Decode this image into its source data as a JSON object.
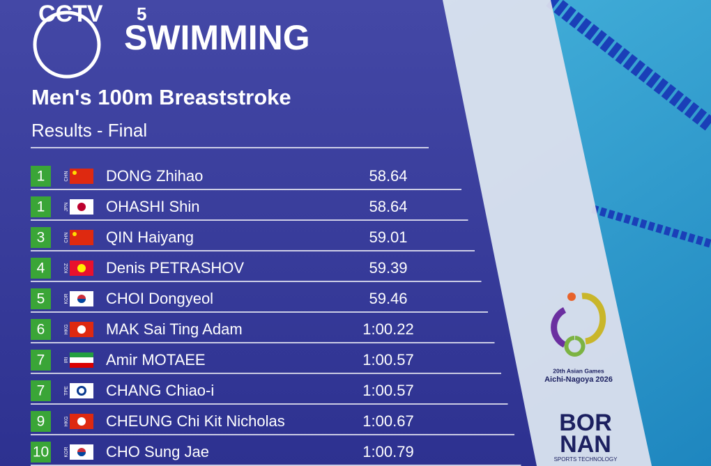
{
  "header": {
    "channel": "CCTV",
    "channel_number": "5",
    "sport": "SWIMMING",
    "event": "Men's 100m Breaststroke",
    "phase": "Results - Final"
  },
  "results": [
    {
      "rank": 1,
      "country": "CHN",
      "name": "DONG Zhihao",
      "time": "58.64"
    },
    {
      "rank": 1,
      "country": "JPN",
      "name": "OHASHI Shin",
      "time": "58.64"
    },
    {
      "rank": 3,
      "country": "CHN",
      "name": "QIN Haiyang",
      "time": "59.01"
    },
    {
      "rank": 4,
      "country": "KGZ",
      "name": "Denis PETRASHOV",
      "time": "59.39"
    },
    {
      "rank": 5,
      "country": "KOR",
      "name": "CHOI Dongyeol",
      "time": "59.46"
    },
    {
      "rank": 6,
      "country": "HKG",
      "name": "MAK Sai Ting Adam",
      "time": "1:00.22"
    },
    {
      "rank": 7,
      "country": "IRI",
      "name": "Amir MOTAEE",
      "time": "1:00.57"
    },
    {
      "rank": 7,
      "country": "TPE",
      "name": "CHANG Chiao-i",
      "time": "1:00.57"
    },
    {
      "rank": 9,
      "country": "HKG",
      "name": "CHEUNG Chi Kit Nicholas",
      "time": "1:00.67"
    },
    {
      "rank": 10,
      "country": "KOR",
      "name": "CHO Sung Jae",
      "time": "1:00.79"
    }
  ],
  "sponsors": {
    "games_line1": "20th Asian Games",
    "games_line2": "Aichi-Nagoya 2026",
    "brand_line1": "BOR",
    "brand_line2": "NAN",
    "brand_tagline": "SPORTS TECHNOLOGY"
  }
}
